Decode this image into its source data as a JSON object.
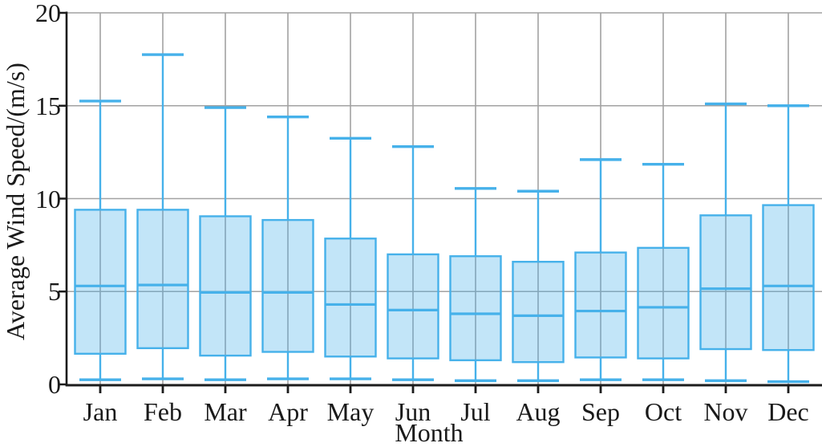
{
  "chart_data": {
    "type": "box",
    "title": "",
    "xlabel": "Month",
    "ylabel": "Average Wind Speed/(m/s)",
    "ylim": [
      0,
      20
    ],
    "yticks": [
      0,
      5,
      10,
      15,
      20
    ],
    "grid": true,
    "grid_vertical_per_month": true,
    "legend": "none",
    "categories": [
      "Jan",
      "Feb",
      "Mar",
      "Apr",
      "May",
      "Jun",
      "Jul",
      "Aug",
      "Sep",
      "Oct",
      "Nov",
      "Dec"
    ],
    "series": [
      {
        "month": "Jan",
        "whisker_low": 0.25,
        "q1": 1.65,
        "median": 5.3,
        "q3": 9.4,
        "whisker_high": 15.25
      },
      {
        "month": "Feb",
        "whisker_low": 0.3,
        "q1": 1.95,
        "median": 5.35,
        "q3": 9.4,
        "whisker_high": 17.75
      },
      {
        "month": "Mar",
        "whisker_low": 0.25,
        "q1": 1.55,
        "median": 4.95,
        "q3": 9.05,
        "whisker_high": 14.9
      },
      {
        "month": "Apr",
        "whisker_low": 0.3,
        "q1": 1.75,
        "median": 4.95,
        "q3": 8.85,
        "whisker_high": 14.4
      },
      {
        "month": "May",
        "whisker_low": 0.3,
        "q1": 1.5,
        "median": 4.3,
        "q3": 7.85,
        "whisker_high": 13.25
      },
      {
        "month": "Jun",
        "whisker_low": 0.25,
        "q1": 1.4,
        "median": 4.0,
        "q3": 7.0,
        "whisker_high": 12.8
      },
      {
        "month": "Jul",
        "whisker_low": 0.2,
        "q1": 1.3,
        "median": 3.8,
        "q3": 6.9,
        "whisker_high": 10.55
      },
      {
        "month": "Aug",
        "whisker_low": 0.2,
        "q1": 1.2,
        "median": 3.7,
        "q3": 6.6,
        "whisker_high": 10.4
      },
      {
        "month": "Sep",
        "whisker_low": 0.25,
        "q1": 1.45,
        "median": 3.95,
        "q3": 7.1,
        "whisker_high": 12.1
      },
      {
        "month": "Oct",
        "whisker_low": 0.25,
        "q1": 1.4,
        "median": 4.15,
        "q3": 7.35,
        "whisker_high": 11.85
      },
      {
        "month": "Nov",
        "whisker_low": 0.2,
        "q1": 1.9,
        "median": 5.15,
        "q3": 9.1,
        "whisker_high": 15.1
      },
      {
        "month": "Dec",
        "whisker_low": 0.15,
        "q1": 1.85,
        "median": 5.3,
        "q3": 9.65,
        "whisker_high": 15.0
      }
    ],
    "colors": {
      "box_line": "#46b1ea",
      "box_fill": "rgba(70,177,234,0.33)",
      "grid": "#a2a2a2",
      "axis": "#1c1c1c",
      "text": "#1a1a1a",
      "background": "#ffffff"
    }
  }
}
